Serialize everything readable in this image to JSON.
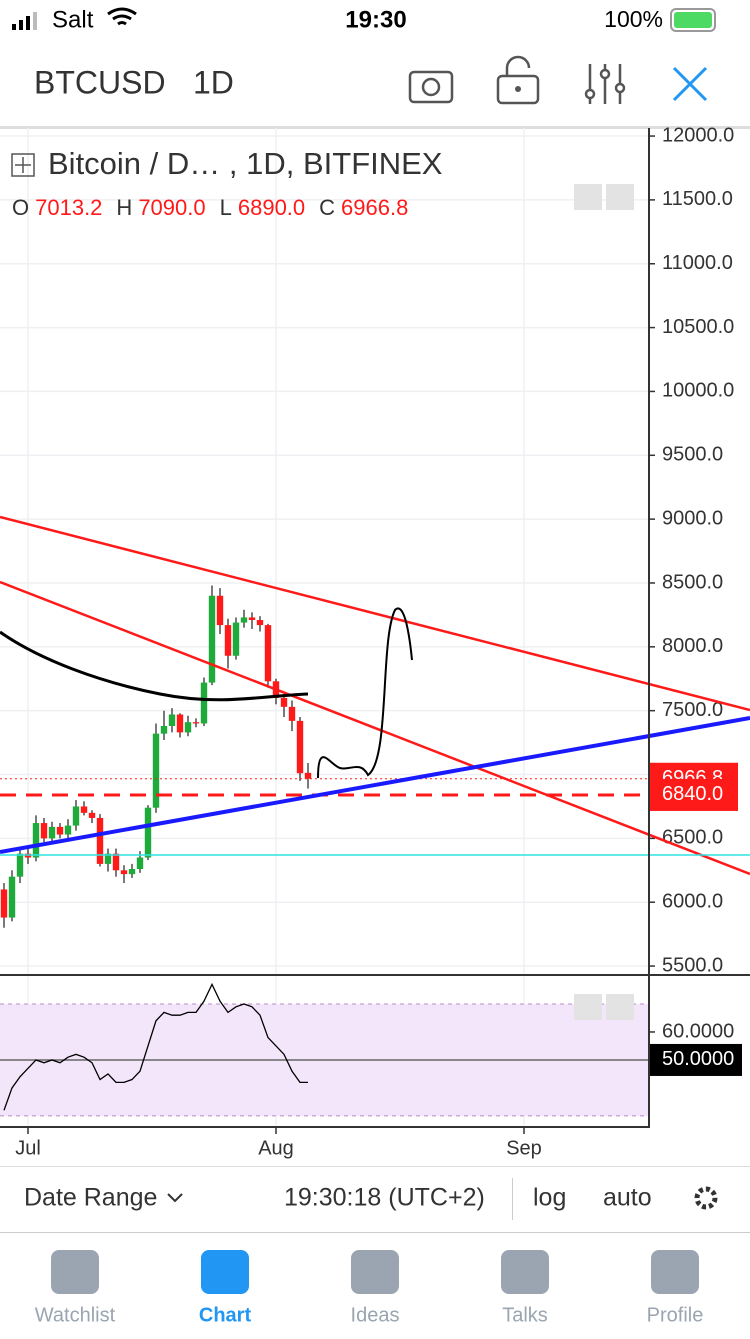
{
  "status_bar": {
    "carrier": "Salt",
    "time": "19:30",
    "battery": "100%"
  },
  "toolbar": {
    "symbol": "BTCUSD",
    "interval": "1D"
  },
  "legend": {
    "title": "Bitcoin / D… , 1D, BITFINEX",
    "ohlc": [
      {
        "label": "O",
        "value": "7013.2"
      },
      {
        "label": "H",
        "value": "7090.0"
      },
      {
        "label": "L",
        "value": "6890.0"
      },
      {
        "label": "C",
        "value": "6966.8"
      }
    ]
  },
  "chart_data": [
    {
      "type": "candlestick",
      "up_color": "#1faa3c",
      "down_color": "#ff1a1a",
      "open": [
        6100,
        5880,
        6200,
        6380,
        6350,
        6620,
        6500,
        6590,
        6530,
        6600,
        6750,
        6700,
        6660,
        6300,
        6380,
        6250,
        6220,
        6260,
        6350,
        6740,
        7320,
        7380,
        7470,
        7330,
        7410,
        7400,
        7720,
        8400,
        8170,
        7930,
        8190,
        8230,
        8210,
        8170,
        7730,
        7600,
        7530,
        7420,
        7013.2
      ],
      "high": [
        6150,
        6250,
        6420,
        6420,
        6680,
        6660,
        6630,
        6620,
        6650,
        6800,
        6790,
        6720,
        6690,
        6420,
        6420,
        6290,
        6300,
        6400,
        6760,
        7400,
        7500,
        7520,
        7480,
        7460,
        7440,
        7760,
        8480,
        8460,
        8220,
        8230,
        8290,
        8270,
        8240,
        8180,
        7750,
        7630,
        7580,
        7450,
        7090
      ],
      "low": [
        5800,
        5850,
        6150,
        6300,
        6320,
        6470,
        6460,
        6500,
        6500,
        6560,
        6680,
        6620,
        6280,
        6240,
        6200,
        6150,
        6190,
        6230,
        6330,
        6700,
        7270,
        7330,
        7290,
        7300,
        7370,
        7380,
        7700,
        8100,
        7830,
        7900,
        8150,
        8140,
        8120,
        7680,
        7550,
        7450,
        7340,
        6950,
        6890
      ],
      "close": [
        5880,
        6200,
        6380,
        6350,
        6620,
        6500,
        6590,
        6530,
        6600,
        6750,
        6700,
        6660,
        6300,
        6380,
        6250,
        6220,
        6260,
        6350,
        6740,
        7320,
        7380,
        7470,
        7330,
        7410,
        7400,
        7720,
        8400,
        8170,
        7930,
        8190,
        8230,
        8210,
        8170,
        7730,
        7600,
        7530,
        7420,
        7010,
        6966.8
      ],
      "xlim": [
        -0.5,
        80.5
      ],
      "xticks": [
        {
          "value": 3,
          "label": "Jul"
        },
        {
          "value": 34,
          "label": "Aug"
        },
        {
          "value": 65,
          "label": "Sep"
        }
      ],
      "ylim": [
        5430,
        12063
      ],
      "yticks": [
        {
          "value": 5500,
          "label": "5500.0"
        },
        {
          "value": 6000,
          "label": "6000.0"
        },
        {
          "value": 6500,
          "label": "6500.0"
        },
        {
          "value": 7000,
          "label": "7000.0"
        },
        {
          "value": 7500,
          "label": "7500.0"
        },
        {
          "value": 8000,
          "label": "8000.0"
        },
        {
          "value": 8500,
          "label": "8500.0"
        },
        {
          "value": 9000,
          "label": "9000.0"
        },
        {
          "value": 9500,
          "label": "9500.0"
        },
        {
          "value": 10000,
          "label": "10000.0"
        },
        {
          "value": 10500,
          "label": "10500.0"
        },
        {
          "value": 11000,
          "label": "11000.0"
        },
        {
          "value": 11500,
          "label": "11500.0"
        },
        {
          "value": 12000,
          "label": "12000.0"
        }
      ],
      "grid": true,
      "price_lines": [
        {
          "value": 6966.8,
          "style": "dotted"
        },
        {
          "value": 6840,
          "label": "6840.0",
          "style": "dashed"
        }
      ]
    },
    {
      "type": "line",
      "color": "#000000",
      "values": [
        32,
        40,
        44,
        47,
        50,
        49,
        50,
        49,
        51,
        52,
        51,
        49,
        43,
        45,
        42,
        42,
        43,
        46,
        55,
        64,
        67,
        66,
        66,
        67,
        67,
        71,
        77,
        71,
        67,
        69,
        70,
        69,
        66,
        58,
        55,
        52,
        46,
        42,
        42
      ],
      "ylim": [
        26.4,
        80
      ],
      "yticks": [
        {
          "value": 60,
          "label": "60.0000"
        },
        {
          "value": 50,
          "label": "50.0000"
        }
      ],
      "bands": [
        70,
        30
      ]
    }
  ],
  "footer": {
    "date_range": "Date Range",
    "clock": "19:30:18 (UTC+2)",
    "log": "log",
    "auto": "auto"
  },
  "tabs": [
    "Watchlist",
    "Chart",
    "Ideas",
    "Talks",
    "Profile"
  ]
}
